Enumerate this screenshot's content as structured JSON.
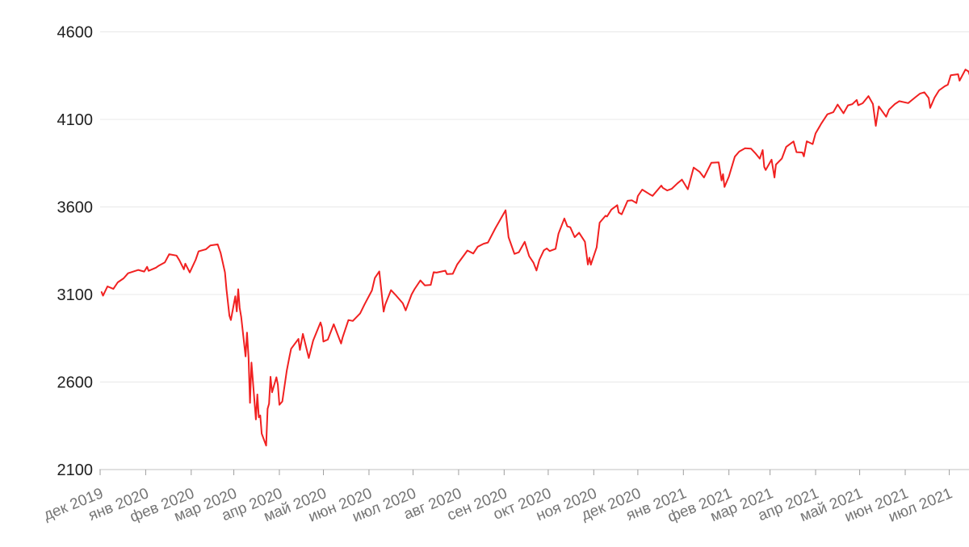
{
  "chart_data": {
    "type": "line",
    "title": "",
    "legend": "none",
    "grid": "horizontal",
    "colors": {
      "line": "#f12121",
      "gridline": "#e8e8e8",
      "axis_line": "#c0c0c0",
      "tick_mark": "#9e9e9e",
      "y_label": "#212121",
      "x_label": "#757575",
      "background": "#ffffff"
    },
    "ylim": [
      2100,
      4600
    ],
    "y_ticks": [
      2100,
      2600,
      3100,
      3600,
      4100,
      4600
    ],
    "x_range": [
      "2019-12-01",
      "2021-08-01"
    ],
    "x_ticks": [
      {
        "label": "дек 2019",
        "date": "2019-12-01"
      },
      {
        "label": "янв 2020",
        "date": "2020-01-01"
      },
      {
        "label": "фев 2020",
        "date": "2020-02-01"
      },
      {
        "label": "мар 2020",
        "date": "2020-03-01"
      },
      {
        "label": "апр 2020",
        "date": "2020-04-01"
      },
      {
        "label": "май 2020",
        "date": "2020-05-01"
      },
      {
        "label": "июн 2020",
        "date": "2020-06-01"
      },
      {
        "label": "июл 2020",
        "date": "2020-07-01"
      },
      {
        "label": "авг 2020",
        "date": "2020-08-01"
      },
      {
        "label": "сен 2020",
        "date": "2020-09-01"
      },
      {
        "label": "окт 2020",
        "date": "2020-10-01"
      },
      {
        "label": "ноя 2020",
        "date": "2020-11-01"
      },
      {
        "label": "дек 2020",
        "date": "2020-12-01"
      },
      {
        "label": "янв 2021",
        "date": "2021-01-01"
      },
      {
        "label": "фев 2021",
        "date": "2021-02-01"
      },
      {
        "label": "мар 2021",
        "date": "2021-03-01"
      },
      {
        "label": "апр 2021",
        "date": "2021-04-01"
      },
      {
        "label": "май 2021",
        "date": "2021-05-01"
      },
      {
        "label": "июн 2021",
        "date": "2021-06-01"
      },
      {
        "label": "июл 2021",
        "date": "2021-07-01"
      }
    ],
    "series": [
      {
        "points": [
          [
            "2019-12-02",
            3114
          ],
          [
            "2019-12-03",
            3093
          ],
          [
            "2019-12-06",
            3146
          ],
          [
            "2019-12-10",
            3132
          ],
          [
            "2019-12-13",
            3169
          ],
          [
            "2019-12-17",
            3192
          ],
          [
            "2019-12-20",
            3221
          ],
          [
            "2019-12-27",
            3240
          ],
          [
            "2019-12-31",
            3231
          ],
          [
            "2020-01-02",
            3258
          ],
          [
            "2020-01-03",
            3235
          ],
          [
            "2020-01-08",
            3253
          ],
          [
            "2020-01-10",
            3265
          ],
          [
            "2020-01-14",
            3283
          ],
          [
            "2020-01-17",
            3330
          ],
          [
            "2020-01-22",
            3322
          ],
          [
            "2020-01-24",
            3295
          ],
          [
            "2020-01-27",
            3244
          ],
          [
            "2020-01-28",
            3276
          ],
          [
            "2020-01-31",
            3226
          ],
          [
            "2020-02-04",
            3298
          ],
          [
            "2020-02-06",
            3346
          ],
          [
            "2020-02-11",
            3358
          ],
          [
            "2020-02-14",
            3380
          ],
          [
            "2020-02-19",
            3386
          ],
          [
            "2020-02-21",
            3338
          ],
          [
            "2020-02-24",
            3226
          ],
          [
            "2020-02-25",
            3128
          ],
          [
            "2020-02-27",
            2979
          ],
          [
            "2020-02-28",
            2954
          ],
          [
            "2020-03-02",
            3090
          ],
          [
            "2020-03-03",
            3003
          ],
          [
            "2020-03-04",
            3130
          ],
          [
            "2020-03-05",
            3024
          ],
          [
            "2020-03-06",
            2972
          ],
          [
            "2020-03-09",
            2746
          ],
          [
            "2020-03-10",
            2882
          ],
          [
            "2020-03-11",
            2741
          ],
          [
            "2020-03-12",
            2481
          ],
          [
            "2020-03-13",
            2711
          ],
          [
            "2020-03-16",
            2386
          ],
          [
            "2020-03-17",
            2529
          ],
          [
            "2020-03-18",
            2398
          ],
          [
            "2020-03-19",
            2409
          ],
          [
            "2020-03-20",
            2305
          ],
          [
            "2020-03-23",
            2237
          ],
          [
            "2020-03-24",
            2447
          ],
          [
            "2020-03-25",
            2476
          ],
          [
            "2020-03-26",
            2630
          ],
          [
            "2020-03-27",
            2541
          ],
          [
            "2020-03-30",
            2627
          ],
          [
            "2020-03-31",
            2585
          ],
          [
            "2020-04-01",
            2470
          ],
          [
            "2020-04-03",
            2489
          ],
          [
            "2020-04-06",
            2664
          ],
          [
            "2020-04-08",
            2750
          ],
          [
            "2020-04-09",
            2790
          ],
          [
            "2020-04-14",
            2846
          ],
          [
            "2020-04-15",
            2783
          ],
          [
            "2020-04-17",
            2875
          ],
          [
            "2020-04-21",
            2737
          ],
          [
            "2020-04-24",
            2837
          ],
          [
            "2020-04-29",
            2940
          ],
          [
            "2020-04-30",
            2912
          ],
          [
            "2020-05-01",
            2831
          ],
          [
            "2020-05-04",
            2843
          ],
          [
            "2020-05-08",
            2930
          ],
          [
            "2020-05-13",
            2820
          ],
          [
            "2020-05-14",
            2853
          ],
          [
            "2020-05-18",
            2954
          ],
          [
            "2020-05-21",
            2949
          ],
          [
            "2020-05-26",
            2992
          ],
          [
            "2020-05-29",
            3044
          ],
          [
            "2020-06-03",
            3123
          ],
          [
            "2020-06-05",
            3194
          ],
          [
            "2020-06-08",
            3232
          ],
          [
            "2020-06-11",
            3002
          ],
          [
            "2020-06-12",
            3041
          ],
          [
            "2020-06-16",
            3125
          ],
          [
            "2020-06-19",
            3098
          ],
          [
            "2020-06-24",
            3050
          ],
          [
            "2020-06-26",
            3009
          ],
          [
            "2020-06-30",
            3100
          ],
          [
            "2020-07-02",
            3130
          ],
          [
            "2020-07-06",
            3180
          ],
          [
            "2020-07-09",
            3152
          ],
          [
            "2020-07-13",
            3155
          ],
          [
            "2020-07-15",
            3227
          ],
          [
            "2020-07-17",
            3225
          ],
          [
            "2020-07-23",
            3236
          ],
          [
            "2020-07-24",
            3216
          ],
          [
            "2020-07-28",
            3218
          ],
          [
            "2020-07-31",
            3271
          ],
          [
            "2020-08-05",
            3328
          ],
          [
            "2020-08-07",
            3351
          ],
          [
            "2020-08-11",
            3334
          ],
          [
            "2020-08-14",
            3373
          ],
          [
            "2020-08-18",
            3390
          ],
          [
            "2020-08-21",
            3397
          ],
          [
            "2020-08-26",
            3478
          ],
          [
            "2020-08-28",
            3508
          ],
          [
            "2020-09-02",
            3581
          ],
          [
            "2020-09-04",
            3427
          ],
          [
            "2020-09-08",
            3332
          ],
          [
            "2020-09-11",
            3341
          ],
          [
            "2020-09-15",
            3401
          ],
          [
            "2020-09-18",
            3319
          ],
          [
            "2020-09-21",
            3281
          ],
          [
            "2020-09-23",
            3237
          ],
          [
            "2020-09-25",
            3298
          ],
          [
            "2020-09-28",
            3352
          ],
          [
            "2020-09-30",
            3363
          ],
          [
            "2020-10-02",
            3348
          ],
          [
            "2020-10-06",
            3361
          ],
          [
            "2020-10-08",
            3447
          ],
          [
            "2020-10-12",
            3534
          ],
          [
            "2020-10-14",
            3489
          ],
          [
            "2020-10-16",
            3484
          ],
          [
            "2020-10-19",
            3427
          ],
          [
            "2020-10-22",
            3453
          ],
          [
            "2020-10-26",
            3401
          ],
          [
            "2020-10-28",
            3271
          ],
          [
            "2020-10-29",
            3310
          ],
          [
            "2020-10-30",
            3270
          ],
          [
            "2020-11-03",
            3369
          ],
          [
            "2020-11-04",
            3443
          ],
          [
            "2020-11-05",
            3510
          ],
          [
            "2020-11-09",
            3550
          ],
          [
            "2020-11-10",
            3545
          ],
          [
            "2020-11-13",
            3585
          ],
          [
            "2020-11-17",
            3610
          ],
          [
            "2020-11-18",
            3568
          ],
          [
            "2020-11-20",
            3558
          ],
          [
            "2020-11-24",
            3635
          ],
          [
            "2020-11-27",
            3638
          ],
          [
            "2020-11-30",
            3622
          ],
          [
            "2020-12-01",
            3662
          ],
          [
            "2020-12-04",
            3699
          ],
          [
            "2020-12-09",
            3673
          ],
          [
            "2020-12-11",
            3663
          ],
          [
            "2020-12-17",
            3722
          ],
          [
            "2020-12-18",
            3709
          ],
          [
            "2020-12-21",
            3694
          ],
          [
            "2020-12-24",
            3703
          ],
          [
            "2020-12-28",
            3735
          ],
          [
            "2020-12-31",
            3756
          ],
          [
            "2021-01-04",
            3701
          ],
          [
            "2021-01-08",
            3825
          ],
          [
            "2021-01-12",
            3801
          ],
          [
            "2021-01-15",
            3768
          ],
          [
            "2021-01-20",
            3852
          ],
          [
            "2021-01-25",
            3855
          ],
          [
            "2021-01-27",
            3751
          ],
          [
            "2021-01-28",
            3787
          ],
          [
            "2021-01-29",
            3714
          ],
          [
            "2021-02-01",
            3774
          ],
          [
            "2021-02-05",
            3887
          ],
          [
            "2021-02-08",
            3916
          ],
          [
            "2021-02-12",
            3935
          ],
          [
            "2021-02-16",
            3933
          ],
          [
            "2021-02-19",
            3907
          ],
          [
            "2021-02-22",
            3876
          ],
          [
            "2021-02-24",
            3925
          ],
          [
            "2021-02-25",
            3829
          ],
          [
            "2021-02-26",
            3811
          ],
          [
            "2021-03-02",
            3870
          ],
          [
            "2021-03-04",
            3768
          ],
          [
            "2021-03-05",
            3842
          ],
          [
            "2021-03-09",
            3876
          ],
          [
            "2021-03-12",
            3943
          ],
          [
            "2021-03-17",
            3974
          ],
          [
            "2021-03-19",
            3913
          ],
          [
            "2021-03-23",
            3911
          ],
          [
            "2021-03-24",
            3889
          ],
          [
            "2021-03-26",
            3975
          ],
          [
            "2021-03-30",
            3959
          ],
          [
            "2021-04-01",
            4020
          ],
          [
            "2021-04-05",
            4078
          ],
          [
            "2021-04-09",
            4129
          ],
          [
            "2021-04-13",
            4141
          ],
          [
            "2021-04-16",
            4185
          ],
          [
            "2021-04-20",
            4135
          ],
          [
            "2021-04-23",
            4180
          ],
          [
            "2021-04-26",
            4187
          ],
          [
            "2021-04-29",
            4211
          ],
          [
            "2021-04-30",
            4181
          ],
          [
            "2021-05-03",
            4192
          ],
          [
            "2021-05-07",
            4233
          ],
          [
            "2021-05-10",
            4188
          ],
          [
            "2021-05-12",
            4063
          ],
          [
            "2021-05-14",
            4174
          ],
          [
            "2021-05-19",
            4115
          ],
          [
            "2021-05-21",
            4156
          ],
          [
            "2021-05-25",
            4188
          ],
          [
            "2021-05-28",
            4204
          ],
          [
            "2021-06-03",
            4193
          ],
          [
            "2021-06-08",
            4227
          ],
          [
            "2021-06-11",
            4247
          ],
          [
            "2021-06-14",
            4255
          ],
          [
            "2021-06-17",
            4222
          ],
          [
            "2021-06-18",
            4166
          ],
          [
            "2021-06-21",
            4225
          ],
          [
            "2021-06-24",
            4266
          ],
          [
            "2021-06-28",
            4290
          ],
          [
            "2021-06-30",
            4298
          ],
          [
            "2021-07-02",
            4352
          ],
          [
            "2021-07-07",
            4358
          ],
          [
            "2021-07-08",
            4321
          ],
          [
            "2021-07-12",
            4385
          ],
          [
            "2021-07-14",
            4374
          ],
          [
            "2021-07-16",
            4327
          ],
          [
            "2021-07-19",
            4258
          ],
          [
            "2021-07-21",
            4359
          ],
          [
            "2021-07-23",
            4412
          ],
          [
            "2021-07-26",
            4422
          ],
          [
            "2021-07-27",
            4401
          ],
          [
            "2021-07-29",
            4419
          ],
          [
            "2021-07-30",
            4395
          ]
        ]
      }
    ]
  }
}
